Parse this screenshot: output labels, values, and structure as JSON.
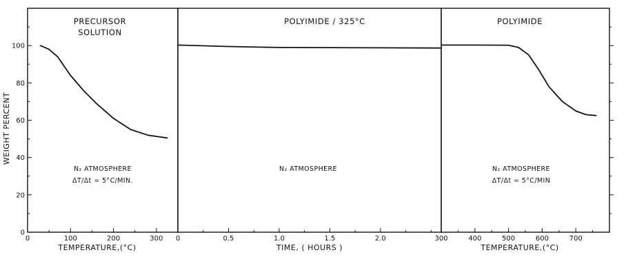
{
  "chart_data": {
    "type": "line",
    "ylabel": "WEIGHT PERCENT",
    "ylim": [
      0,
      120
    ],
    "yticks": [
      "0",
      "20",
      "40",
      "60",
      "80",
      "100"
    ],
    "panels": [
      {
        "id": "precursor",
        "title": [
          "PRECURSOR",
          "SOLUTION"
        ],
        "xlabel": "TEMPERATURE,(°C)",
        "xlim": [
          0,
          350
        ],
        "xticks": [
          {
            "value": 0,
            "label": "0"
          },
          {
            "value": 100,
            "label": "100"
          },
          {
            "value": 200,
            "label": "200"
          },
          {
            "value": 300,
            "label": "300"
          }
        ],
        "annotation": [
          "N₂ ATMOSPHERE",
          "ΔT/Δt = 5°C/MIN."
        ],
        "series": [
          {
            "x": [
              30,
              50,
              70,
              100,
              130,
              160,
              200,
              240,
              280,
              310,
              325
            ],
            "y": [
              100,
              98,
              94,
              84,
              76,
              69,
              61,
              55,
              52,
              51,
              50.5
            ]
          }
        ]
      },
      {
        "id": "isothermal",
        "title": [
          "POLYIMIDE / 325°C"
        ],
        "xlabel": "TIME, ( HOURS )",
        "xlim": [
          0,
          2.6
        ],
        "xticks": [
          {
            "value": 0,
            "label": "0"
          },
          {
            "value": 0.5,
            "label": "0.5"
          },
          {
            "value": 1.0,
            "label": "1.0"
          },
          {
            "value": 1.5,
            "label": "1.5"
          },
          {
            "value": 2.0,
            "label": "2.0"
          }
        ],
        "annotation": [
          "N₂ ATMOSPHERE"
        ],
        "series": [
          {
            "x": [
              0,
              0.5,
              1.0,
              1.5,
              2.0,
              2.6
            ],
            "y": [
              100.3,
              99.5,
              99.0,
              98.9,
              98.8,
              98.7
            ]
          }
        ]
      },
      {
        "id": "polyimide",
        "title": [
          "POLYIMIDE"
        ],
        "xlabel": "TEMPERATURE,(°C)",
        "xlim": [
          300,
          800
        ],
        "xticks": [
          {
            "value": 300,
            "label": "300"
          },
          {
            "value": 400,
            "label": "400"
          },
          {
            "value": 500,
            "label": "500"
          },
          {
            "value": 600,
            "label": "600"
          },
          {
            "value": 700,
            "label": "700"
          }
        ],
        "annotation": [
          "N₂ ATMOSPHERE",
          "ΔT/Δt = 5°C/MIN"
        ],
        "series": [
          {
            "x": [
              300,
              400,
              500,
              530,
              560,
              590,
              620,
              660,
              700,
              730,
              760
            ],
            "y": [
              100.3,
              100.3,
              100.2,
              99,
              95,
              87,
              78,
              70,
              65,
              63,
              62.5
            ]
          }
        ]
      }
    ]
  }
}
